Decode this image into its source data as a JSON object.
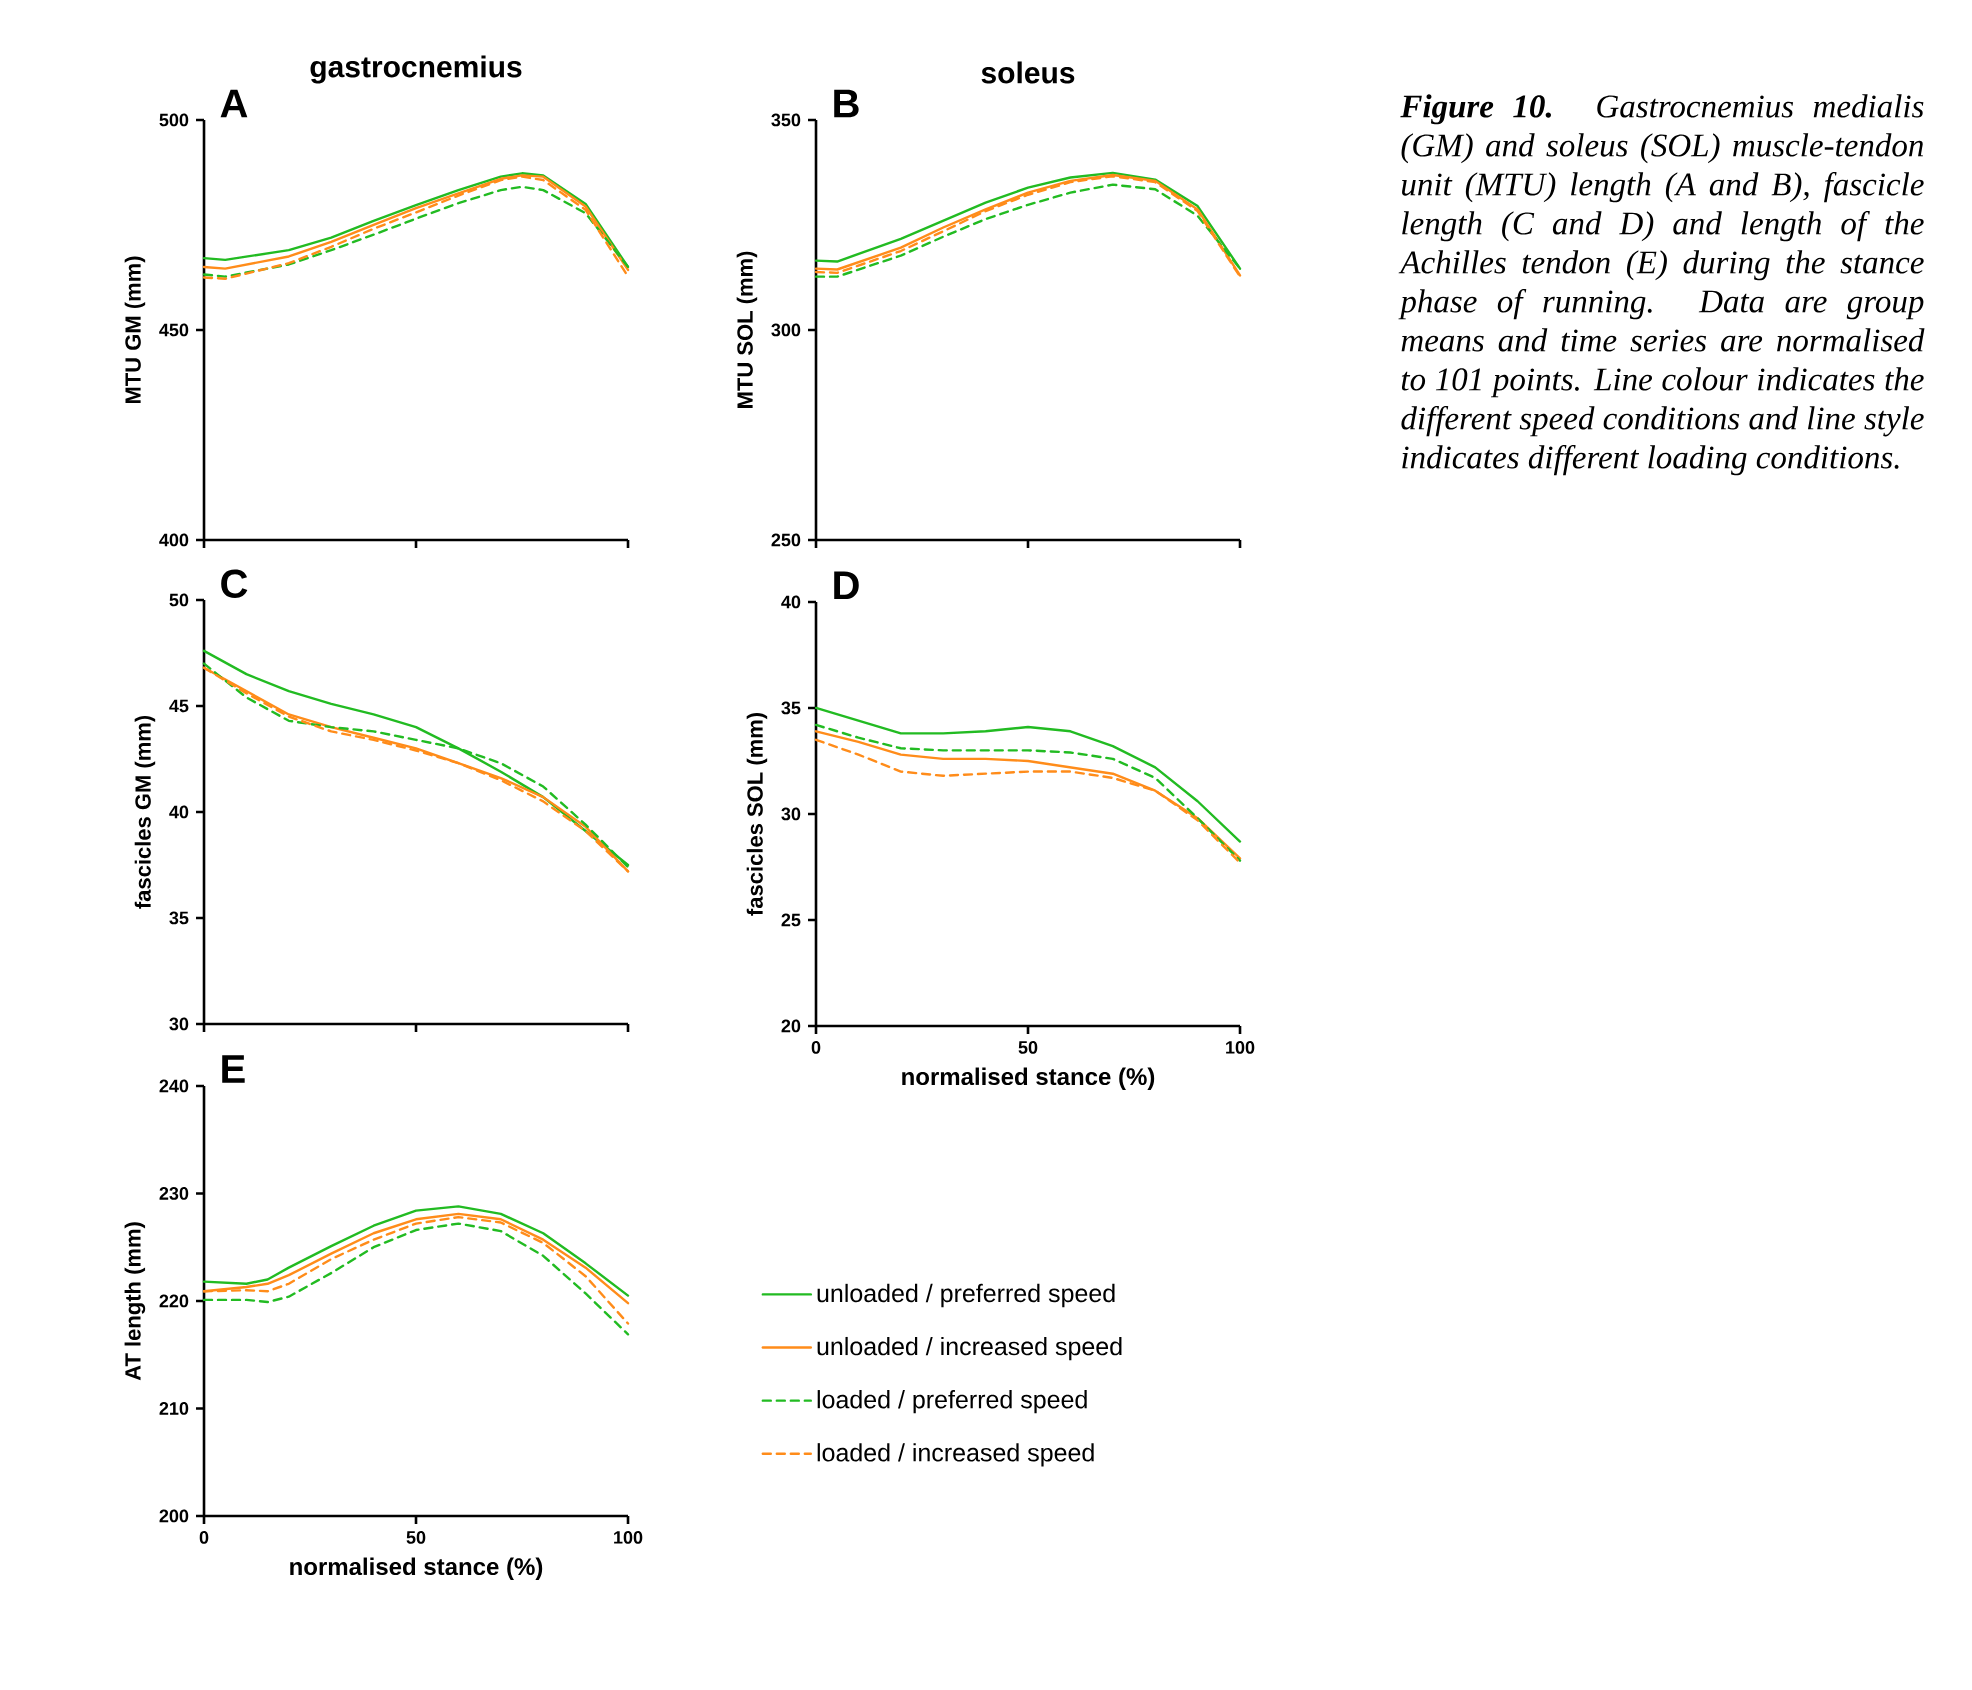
{
  "chart_data": [
    {
      "type": "line",
      "title": "A",
      "subtitle": "gastrocnemius",
      "ylabel": "MTU GM (mm)",
      "x": [
        0,
        5,
        20,
        30,
        40,
        50,
        60,
        70,
        75,
        80,
        90,
        100
      ],
      "xlim": [
        0,
        100
      ],
      "xticks": [
        0,
        50,
        100
      ],
      "ylim": [
        400,
        500
      ],
      "yticks": [
        400,
        450,
        500
      ],
      "tick_labels": "y",
      "grid": false,
      "series": [
        {
          "color": "#22bb22",
          "line_style": "solid",
          "values": [
            467.1,
            466.7,
            469,
            472,
            476,
            479.7,
            483.3,
            486.5,
            487.3,
            486.8,
            480,
            465
          ]
        },
        {
          "color": "#ff8c1a",
          "line_style": "solid",
          "values": [
            465,
            464.6,
            467.5,
            471,
            475,
            479,
            482.5,
            486,
            486.8,
            486.5,
            479.4,
            464.3
          ]
        },
        {
          "color": "#22bb22",
          "line_style": "dashed",
          "values": [
            463.2,
            462.7,
            465.6,
            469,
            472.7,
            476.5,
            480.2,
            483.3,
            484.1,
            483.3,
            477.8,
            465
          ]
        },
        {
          "color": "#ff8c1a",
          "line_style": "dashed",
          "values": [
            462.5,
            462.2,
            465.9,
            469.8,
            474.1,
            478,
            482,
            485.7,
            486.5,
            485.7,
            478.6,
            462.7
          ]
        }
      ]
    },
    {
      "type": "line",
      "title": "B",
      "subtitle": "soleus",
      "ylabel": "MTU SOL (mm)",
      "x": [
        0,
        5,
        20,
        30,
        40,
        50,
        60,
        70,
        80,
        90,
        100
      ],
      "xlim": [
        0,
        100
      ],
      "xticks": [
        0,
        50,
        100
      ],
      "ylim": [
        250,
        350
      ],
      "yticks": [
        250,
        300,
        350
      ],
      "tick_labels": "y",
      "grid": false,
      "series": [
        {
          "color": "#22bb22",
          "line_style": "solid",
          "values": [
            316.5,
            316.3,
            321.7,
            326,
            330.3,
            333.9,
            336.3,
            337.4,
            335.8,
            329.5,
            314.6
          ]
        },
        {
          "color": "#ff8c1a",
          "line_style": "solid",
          "values": [
            314.6,
            314.4,
            319.6,
            324.4,
            328.7,
            332.7,
            335.5,
            336.9,
            335.5,
            328.7,
            313
          ]
        },
        {
          "color": "#22bb22",
          "line_style": "dashed",
          "values": [
            312.7,
            312.7,
            317.7,
            322.2,
            326.4,
            329.8,
            332.7,
            334.6,
            333.5,
            327.2,
            314.6
          ]
        },
        {
          "color": "#ff8c1a",
          "line_style": "dashed",
          "values": [
            313.8,
            313.6,
            318.8,
            323.5,
            328.3,
            332.2,
            335.2,
            336.6,
            335.2,
            328.3,
            312.7
          ]
        }
      ]
    },
    {
      "type": "line",
      "title": "C",
      "ylabel": "fascicles GM (mm)",
      "x": [
        0,
        10,
        20,
        30,
        40,
        50,
        60,
        70,
        80,
        90,
        100
      ],
      "xlim": [
        0,
        100
      ],
      "xticks": [
        0,
        50,
        100
      ],
      "ylim": [
        30,
        50
      ],
      "yticks": [
        30,
        35,
        40,
        45,
        50
      ],
      "tick_labels": "y",
      "grid": false,
      "series": [
        {
          "color": "#22bb22",
          "line_style": "solid",
          "values": [
            47.6,
            46.5,
            45.7,
            45.1,
            44.6,
            44.0,
            43.0,
            41.9,
            40.7,
            39.1,
            37.5
          ]
        },
        {
          "color": "#ff8c1a",
          "line_style": "solid",
          "values": [
            46.8,
            45.7,
            44.6,
            44.0,
            43.5,
            43.0,
            42.3,
            41.6,
            40.7,
            39.3,
            37.2
          ]
        },
        {
          "color": "#22bb22",
          "line_style": "dashed",
          "values": [
            47.0,
            45.4,
            44.3,
            44.0,
            43.8,
            43.4,
            43.0,
            42.3,
            41.2,
            39.4,
            37.4
          ]
        },
        {
          "color": "#ff8c1a",
          "line_style": "dashed",
          "values": [
            46.8,
            45.6,
            44.5,
            43.8,
            43.4,
            42.9,
            42.3,
            41.5,
            40.5,
            39.1,
            37.2
          ]
        }
      ]
    },
    {
      "type": "line",
      "title": "D",
      "ylabel": "fascicles SOL (mm)",
      "xlabel": "normalised stance (%)",
      "x": [
        0,
        10,
        20,
        30,
        40,
        50,
        60,
        70,
        80,
        90,
        100
      ],
      "xlim": [
        0,
        100
      ],
      "xticks": [
        0,
        50,
        100
      ],
      "ylim": [
        20,
        40
      ],
      "yticks": [
        20,
        25,
        30,
        35,
        40
      ],
      "grid": false,
      "series": [
        {
          "color": "#22bb22",
          "line_style": "solid",
          "values": [
            35.0,
            34.4,
            33.8,
            33.8,
            33.9,
            34.1,
            33.9,
            33.2,
            32.2,
            30.6,
            28.7
          ]
        },
        {
          "color": "#ff8c1a",
          "line_style": "solid",
          "values": [
            33.9,
            33.4,
            32.8,
            32.6,
            32.6,
            32.5,
            32.2,
            31.9,
            31.1,
            29.8,
            27.9
          ]
        },
        {
          "color": "#22bb22",
          "line_style": "dashed",
          "values": [
            34.2,
            33.6,
            33.1,
            33.0,
            33.0,
            33.0,
            32.9,
            32.6,
            31.7,
            29.8,
            27.8
          ]
        },
        {
          "color": "#ff8c1a",
          "line_style": "dashed",
          "values": [
            33.5,
            32.8,
            32.0,
            31.8,
            31.9,
            32.0,
            32.0,
            31.7,
            31.1,
            29.7,
            27.7
          ]
        }
      ]
    },
    {
      "type": "line",
      "title": "E",
      "ylabel": "AT length (mm)",
      "xlabel": "normalised stance (%)",
      "x": [
        0,
        10,
        15,
        20,
        30,
        40,
        50,
        60,
        70,
        80,
        90,
        100
      ],
      "xlim": [
        0,
        100
      ],
      "xticks": [
        0,
        50,
        100
      ],
      "ylim": [
        200,
        240
      ],
      "yticks": [
        200,
        210,
        220,
        230,
        240
      ],
      "grid": false,
      "legend": "right",
      "series": [
        {
          "name": "unloaded / preferred speed",
          "color": "#22bb22",
          "line_style": "solid",
          "values": [
            221.8,
            221.6,
            222.0,
            223.1,
            225.1,
            227.0,
            228.4,
            228.8,
            228.1,
            226.3,
            223.5,
            220.5
          ]
        },
        {
          "name": "unloaded / increased speed",
          "color": "#ff8c1a",
          "line_style": "solid",
          "values": [
            220.9,
            221.3,
            221.6,
            222.4,
            224.4,
            226.3,
            227.6,
            228.1,
            227.6,
            225.7,
            223.1,
            219.8
          ]
        },
        {
          "name": "loaded / preferred speed",
          "color": "#22bb22",
          "line_style": "dashed",
          "values": [
            220.1,
            220.1,
            219.9,
            220.4,
            222.6,
            225.0,
            226.6,
            227.2,
            226.5,
            224.2,
            220.7,
            216.9
          ]
        },
        {
          "name": "loaded / increased speed",
          "color": "#ff8c1a",
          "line_style": "dashed",
          "values": [
            220.9,
            221.0,
            220.9,
            221.6,
            223.9,
            225.7,
            227.2,
            227.8,
            227.3,
            225.4,
            222.3,
            217.9
          ]
        }
      ]
    },
    {
      "type": "other",
      "annotations": [
        "**Figure 10.** Gastrocnemius medialis (GM) and soleus (SOL) muscle-tendon unit (MTU) length (A and B), fascicle length (C and D) and length of the Achilles tendon (E) during the stance phase of running. Data are group means and time series are normalised to 101 points. Line colour indicates the different speed conditions and line style indicates different loading conditions."
      ]
    }
  ]
}
